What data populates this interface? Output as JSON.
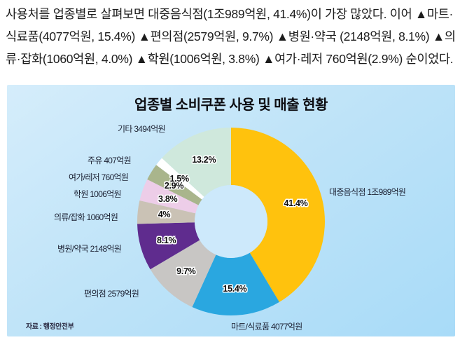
{
  "article": {
    "paragraph": "사용처를 업종별로 살펴보면 대중음식점(1조989억원, 41.4%)이 가장 많았다. 이어 ▲마트·식료품(4077억원, 15.4%) ▲편의점(2579억원, 9.7%) ▲병원·약국 (2148억원, 8.1%) ▲의류·잡화(1060억원, 4.0%) ▲학원(1006억원, 3.8%) ▲여가·레저 760억원(2.9%) 순이었다."
  },
  "chart": {
    "panel_background": "#BEE3F8",
    "hole_color": "#CDE9FB",
    "accent_note_colors": {
      "restaurant_yellow": "#FFC20D",
      "mart_blue": "#2AA7E0",
      "convenience_gray": "#C8C6C4",
      "hospital_purple": "#5F2C8E",
      "clothing_tan": "#CAC2B5",
      "academy_pink": "#EDCDE8",
      "leisure_olive": "#A9B58C",
      "fuel_white": "#FFFFFF",
      "etc_mint": "#CFE8DC"
    }
  },
  "chart_data": {
    "type": "pie",
    "donut": true,
    "title": "업종별 소비쿠폰 사용 및 매출 현황",
    "source": "자료 : 행정안전부",
    "start_angle_deg": 0,
    "direction": "clockwise",
    "unit": "%",
    "legend_position": "around-slices",
    "categories": [
      "대중음식점",
      "마트/식료품",
      "편의점",
      "병원/약국",
      "의류/잡화",
      "학원",
      "여가/레저",
      "주유",
      "기타"
    ],
    "values": [
      41.4,
      15.4,
      9.7,
      8.1,
      4.0,
      3.8,
      2.9,
      1.5,
      13.2
    ],
    "amounts": [
      "1조989억원",
      "4077억원",
      "2579억원",
      "2148억원",
      "1060억원",
      "1006억원",
      "760억원",
      "407억원",
      "3494억원"
    ],
    "slices": [
      {
        "label": "대중음식점 1조989억원",
        "category": "대중음식점",
        "amount": "1조989억원",
        "value": 41.4,
        "pct_label": "41.4%",
        "color": "#FFC20D"
      },
      {
        "label": "마트/식료품 4077억원",
        "category": "마트/식료품",
        "amount": "4077억원",
        "value": 15.4,
        "pct_label": "15.4%",
        "color": "#2AA7E0"
      },
      {
        "label": "편의점 2579억원",
        "category": "편의점",
        "amount": "2579억원",
        "value": 9.7,
        "pct_label": "9.7%",
        "color": "#C8C6C4"
      },
      {
        "label": "병원/약국 2148억원",
        "category": "병원/약국",
        "amount": "2148억원",
        "value": 8.1,
        "pct_label": "8.1%",
        "color": "#5F2C8E"
      },
      {
        "label": "의류/잡화 1060억원",
        "category": "의류/잡화",
        "amount": "1060억원",
        "value": 4.0,
        "pct_label": "4%",
        "color": "#CAC2B5"
      },
      {
        "label": "학원 1006억원",
        "category": "학원",
        "amount": "1006억원",
        "value": 3.8,
        "pct_label": "3.8%",
        "color": "#EDCDE8"
      },
      {
        "label": "여가/레저 760억원",
        "category": "여가/레저",
        "amount": "760억원",
        "value": 2.9,
        "pct_label": "2.9%",
        "color": "#A9B58C"
      },
      {
        "label": "주유 407억원",
        "category": "주유",
        "amount": "407억원",
        "value": 1.5,
        "pct_label": "1.5%",
        "color": "#FFFFFF"
      },
      {
        "label": "기타 3494억원",
        "category": "기타",
        "amount": "3494억원",
        "value": 13.2,
        "pct_label": "13.2%",
        "color": "#CFE8DC"
      }
    ]
  }
}
